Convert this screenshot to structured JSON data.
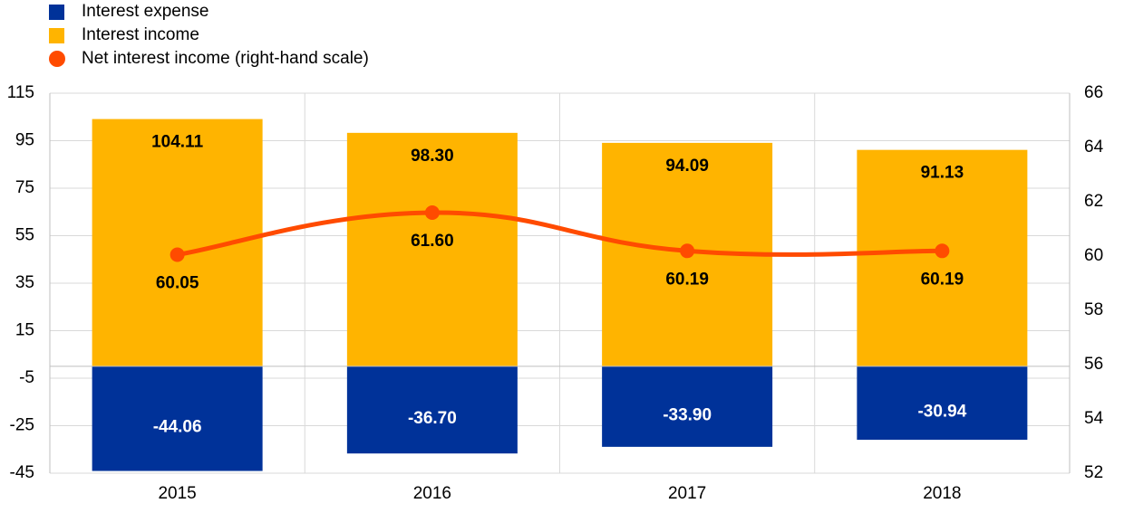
{
  "chart_data": {
    "type": "bar",
    "categories": [
      "2015",
      "2016",
      "2017",
      "2018"
    ],
    "series": [
      {
        "name": "Interest expense",
        "kind": "bar",
        "axis": "left",
        "color": "#003299",
        "values": [
          -44.06,
          -36.7,
          -33.9,
          -30.94
        ],
        "labels": [
          "-44.06",
          "-36.70",
          "-33.90",
          "-30.94"
        ]
      },
      {
        "name": "Interest income",
        "kind": "bar",
        "axis": "left",
        "color": "#ffb400",
        "values": [
          104.11,
          98.3,
          94.09,
          91.13
        ],
        "labels": [
          "104.11",
          "98.30",
          "94.09",
          "91.13"
        ]
      },
      {
        "name": "Net interest income (right-hand scale)",
        "kind": "line",
        "axis": "right",
        "color": "#ff4b00",
        "values": [
          60.05,
          61.6,
          60.19,
          60.19
        ],
        "labels": [
          "60.05",
          "61.60",
          "60.19",
          "60.19"
        ]
      }
    ],
    "y_left": {
      "min": -45,
      "max": 115,
      "ticks": [
        "115",
        "95",
        "75",
        "55",
        "35",
        "15",
        "-5",
        "-25",
        "-45"
      ]
    },
    "y_right": {
      "min": 52,
      "max": 66,
      "ticks": [
        "66",
        "64",
        "62",
        "60",
        "58",
        "56",
        "54",
        "52"
      ]
    },
    "grid": true,
    "legend_position": "top-left"
  }
}
